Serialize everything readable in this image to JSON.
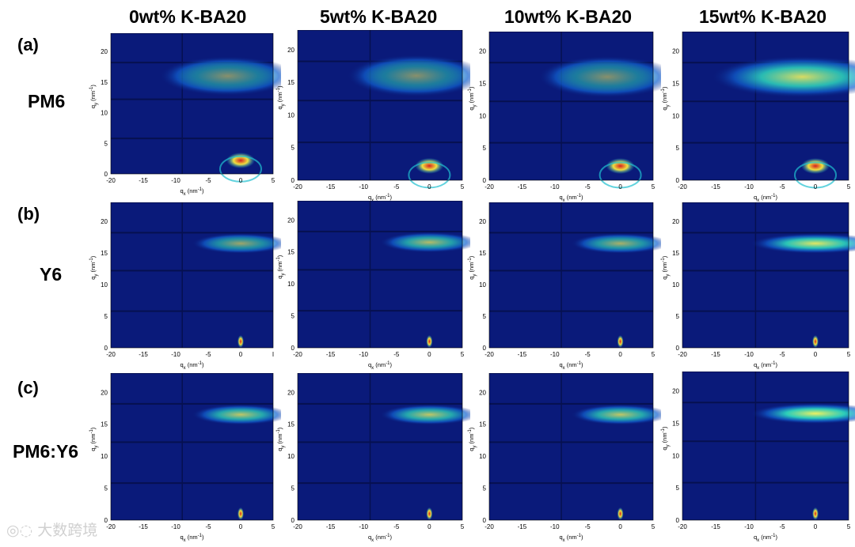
{
  "column_titles": [
    "0wt% K-BA20",
    "5wt% K-BA20",
    "10wt% K-BA20",
    "15wt% K-BA20"
  ],
  "rows": [
    {
      "letter": "(a)",
      "name": "PM6"
    },
    {
      "letter": "(b)",
      "name": "Y6"
    },
    {
      "letter": "(c)",
      "name": "PM6:Y6"
    }
  ],
  "axis": {
    "y_label_base": "q",
    "y_label_sub": "y",
    "y_label_unit": "(nm",
    "x_label_base": "q",
    "x_label_sub": "x",
    "x_label_unit": "(nm",
    "unit_exp": "-1",
    "unit_close": ")",
    "x_ticks": [
      "-20",
      "-15",
      "-10",
      "-5",
      "0",
      "5"
    ],
    "x_ticks_alt_b0": [
      "-20",
      "-15",
      "-10",
      "-5",
      "0",
      "I"
    ],
    "y_ticks": [
      "0",
      "5",
      "10",
      "15",
      "20"
    ]
  },
  "watermark": "大数跨境",
  "colors": {
    "background": "#0a1a7a",
    "hot": "#d42020",
    "warm": "#f0e040",
    "mid": "#20d0c0"
  }
}
